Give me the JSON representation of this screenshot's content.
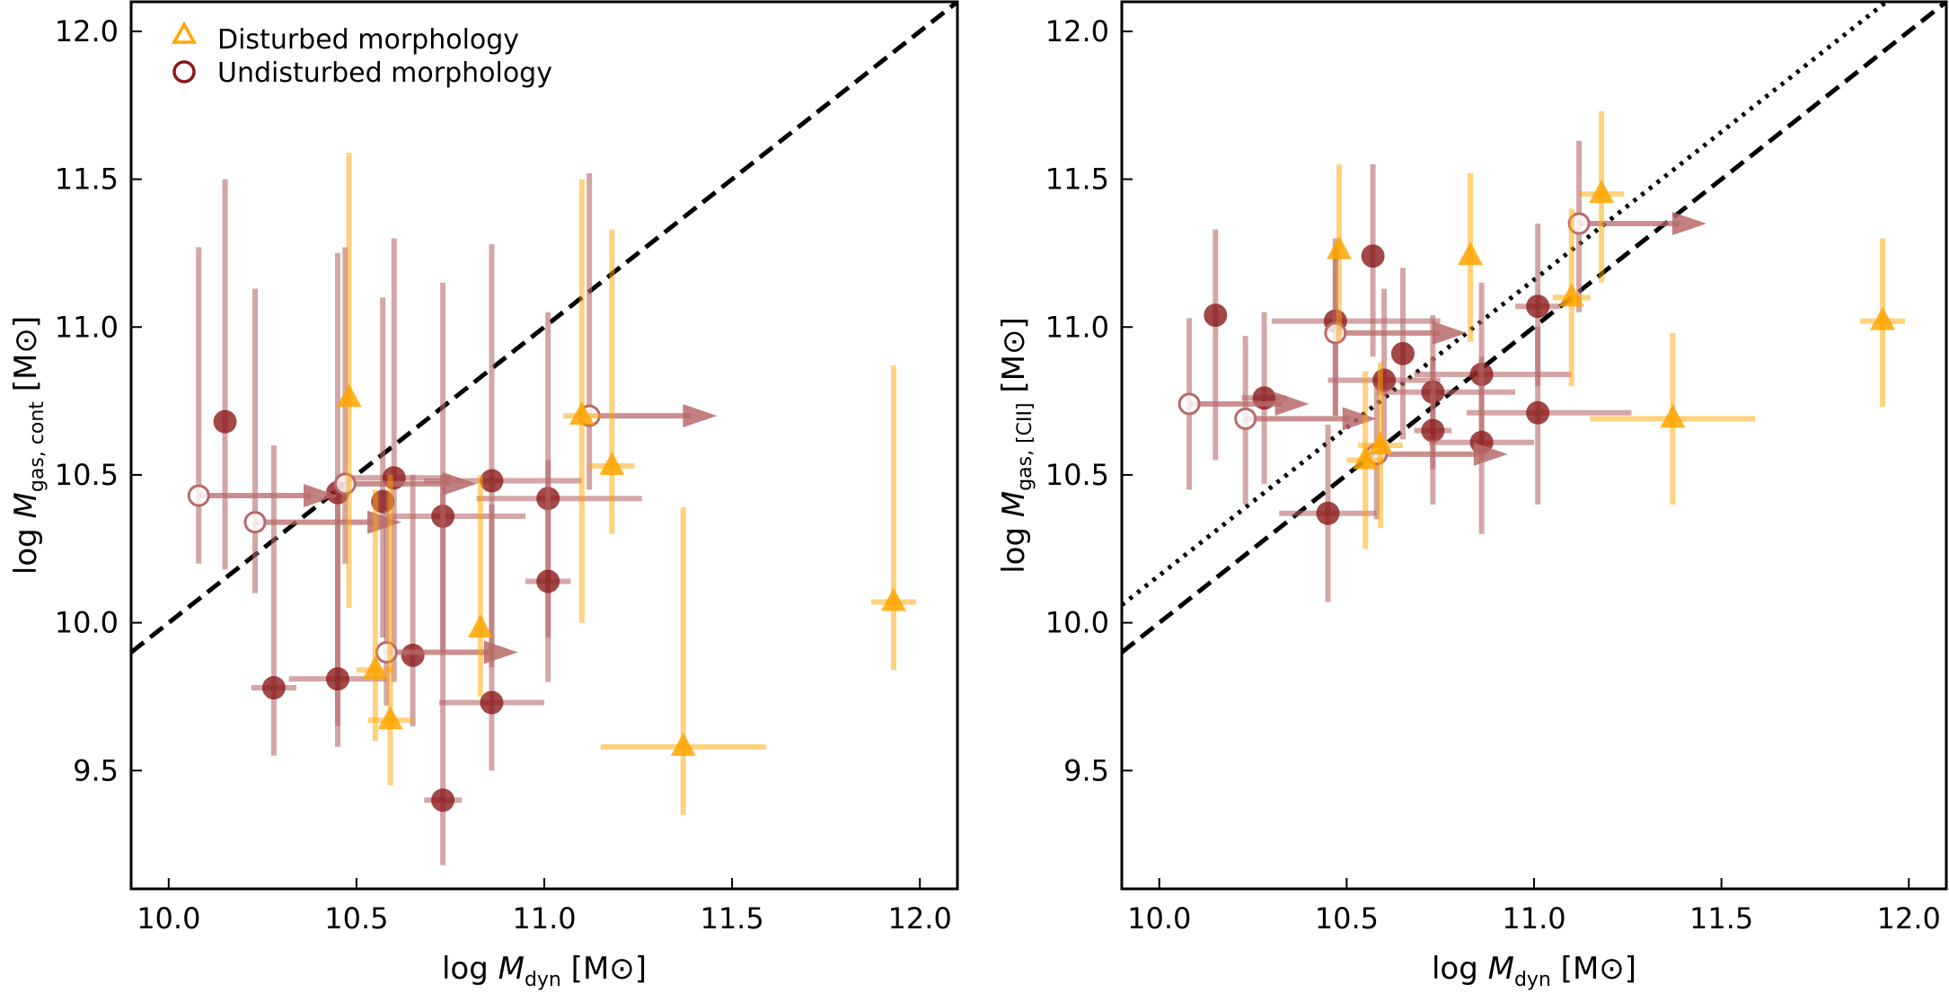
{
  "colors": {
    "disturbed": "#FFA500",
    "undisturbed": "#8B1A1A",
    "undisturbed_faded": "#B86A6A",
    "frame": "#000000"
  },
  "legend": {
    "placement": "top-left",
    "items": [
      {
        "label": "Disturbed morphology",
        "marker": "triangle-open",
        "color_key": "disturbed"
      },
      {
        "label": "Undisturbed morphology",
        "marker": "circle-open",
        "color_key": "undisturbed"
      }
    ]
  },
  "chart_data": [
    {
      "type": "scatter",
      "panel": "left",
      "xlabel_pre": "log ",
      "xlabel_var": "M",
      "xlabel_sub": "dyn",
      "xlabel_post": " [M⊙]",
      "ylabel_pre": "log ",
      "ylabel_var": "M",
      "ylabel_sub": "gas, cont",
      "ylabel_post": " [M⊙]",
      "xlim": [
        9.9,
        12.1
      ],
      "ylim": [
        9.1,
        12.1
      ],
      "xticks": [
        "10.0",
        "10.5",
        "11.0",
        "11.5",
        "12.0"
      ],
      "yticks": [
        "9.5",
        "10.0",
        "10.5",
        "11.0",
        "11.5",
        "12.0"
      ],
      "lines": [
        {
          "style": "dashed",
          "slope": 1,
          "intercept": 0
        }
      ],
      "series": [
        {
          "name": "Undisturbed morphology",
          "points": [
            {
              "x": 10.15,
              "y": 10.68,
              "ylo": 10.18,
              "yhi": 11.5
            },
            {
              "x": 10.45,
              "y": 10.44,
              "ylo": 9.65,
              "yhi": 11.25
            },
            {
              "x": 10.57,
              "y": 10.41,
              "ylo": 9.95,
              "yhi": 11.1
            },
            {
              "x": 10.6,
              "y": 10.49,
              "ylo": 9.8,
              "yhi": 11.3,
              "xlo": 10.45,
              "xhi": 10.75
            },
            {
              "x": 10.73,
              "y": 10.36,
              "ylo": 9.9,
              "yhi": 11.15,
              "xlo": 10.58,
              "xhi": 10.95
            },
            {
              "x": 10.86,
              "y": 10.48,
              "ylo": 9.85,
              "yhi": 11.28,
              "xlo": 10.68,
              "xhi": 11.1
            },
            {
              "x": 11.01,
              "y": 10.42,
              "ylo": 9.95,
              "yhi": 11.05,
              "xlo": 10.82,
              "xhi": 11.26
            },
            {
              "x": 11.01,
              "y": 10.14,
              "ylo": 9.8,
              "yhi": 10.55,
              "xlo": 10.95,
              "xhi": 11.07
            },
            {
              "x": 10.28,
              "y": 9.78,
              "ylo": 9.55,
              "yhi": 10.6,
              "xlo": 10.22,
              "xhi": 10.34
            },
            {
              "x": 10.45,
              "y": 9.81,
              "ylo": 9.58,
              "yhi": 10.4,
              "xlo": 10.32,
              "xhi": 10.58
            },
            {
              "x": 10.65,
              "y": 9.89,
              "ylo": 9.65,
              "yhi": 10.5
            },
            {
              "x": 10.86,
              "y": 9.73,
              "ylo": 9.5,
              "yhi": 10.4,
              "xlo": 10.72,
              "xhi": 11.0
            },
            {
              "x": 10.73,
              "y": 9.4,
              "ylo": 9.18,
              "yhi": 10.5,
              "xlo": 10.68,
              "xhi": 10.78
            },
            {
              "x": 10.08,
              "y": 10.43,
              "ylo": 10.2,
              "yhi": 11.27,
              "open": true,
              "xlimit_to": 10.45
            },
            {
              "x": 10.23,
              "y": 10.34,
              "ylo": 10.1,
              "yhi": 11.13,
              "open": true,
              "xlimit_to": 10.62
            },
            {
              "x": 10.47,
              "y": 10.47,
              "ylo": 10.2,
              "yhi": 11.27,
              "open": true,
              "xlimit_to": 10.82
            },
            {
              "x": 10.58,
              "y": 9.9,
              "ylo": 9.72,
              "yhi": 10.38,
              "open": true,
              "xlimit_to": 10.93
            },
            {
              "x": 11.12,
              "y": 10.7,
              "ylo": 10.45,
              "yhi": 11.52,
              "open": true,
              "xlimit_to": 11.46
            }
          ]
        },
        {
          "name": "Disturbed morphology",
          "points": [
            {
              "x": 10.48,
              "y": 10.76,
              "ylo": 10.05,
              "yhi": 11.59
            },
            {
              "x": 11.1,
              "y": 10.7,
              "ylo": 10.0,
              "yhi": 11.5,
              "xlo": 11.05,
              "xhi": 11.15
            },
            {
              "x": 11.18,
              "y": 10.53,
              "ylo": 10.3,
              "yhi": 11.33,
              "xlo": 11.12,
              "xhi": 11.24
            },
            {
              "x": 10.83,
              "y": 9.98,
              "ylo": 9.75,
              "yhi": 10.5
            },
            {
              "x": 10.55,
              "y": 9.84,
              "ylo": 9.6,
              "yhi": 10.45,
              "xlo": 10.5,
              "xhi": 10.6
            },
            {
              "x": 10.59,
              "y": 9.67,
              "ylo": 9.45,
              "yhi": 10.5,
              "xlo": 10.53,
              "xhi": 10.65
            },
            {
              "x": 11.37,
              "y": 9.58,
              "ylo": 9.35,
              "yhi": 10.39,
              "xlo": 11.15,
              "xhi": 11.59
            },
            {
              "x": 11.93,
              "y": 10.07,
              "ylo": 9.84,
              "yhi": 10.87,
              "xlo": 11.87,
              "xhi": 11.99
            }
          ]
        }
      ]
    },
    {
      "type": "scatter",
      "panel": "right",
      "xlabel_pre": "log ",
      "xlabel_var": "M",
      "xlabel_sub": "dyn",
      "xlabel_post": " [M⊙]",
      "ylabel_pre": "log ",
      "ylabel_var": "M",
      "ylabel_sub": "gas, [CII]",
      "ylabel_post": " [M⊙]",
      "xlim": [
        9.9,
        12.1
      ],
      "ylim": [
        9.1,
        12.1
      ],
      "xticks": [
        "10.0",
        "10.5",
        "11.0",
        "11.5",
        "12.0"
      ],
      "yticks": [
        "9.5",
        "10.0",
        "10.5",
        "11.0",
        "11.5",
        "12.0"
      ],
      "lines": [
        {
          "style": "dashed",
          "slope": 1,
          "intercept": 0
        },
        {
          "style": "dotted",
          "slope": 1,
          "intercept": 0.16
        }
      ],
      "series": [
        {
          "name": "Undisturbed morphology",
          "points": [
            {
              "x": 10.15,
              "y": 11.04,
              "ylo": 10.55,
              "yhi": 11.33
            },
            {
              "x": 10.28,
              "y": 10.76,
              "ylo": 10.47,
              "yhi": 11.05,
              "xlo": 10.22,
              "xhi": 10.34
            },
            {
              "x": 10.47,
              "y": 11.02,
              "ylo": 10.7,
              "yhi": 11.27,
              "xlo": 10.3,
              "xhi": 10.75
            },
            {
              "x": 10.57,
              "y": 11.24,
              "ylo": 10.9,
              "yhi": 11.55
            },
            {
              "x": 10.6,
              "y": 10.82,
              "ylo": 10.55,
              "yhi": 11.13,
              "xlo": 10.45,
              "xhi": 10.75
            },
            {
              "x": 10.65,
              "y": 10.91,
              "ylo": 10.62,
              "yhi": 11.2
            },
            {
              "x": 10.73,
              "y": 10.78,
              "ylo": 10.52,
              "yhi": 11.04,
              "xlo": 10.58,
              "xhi": 10.95
            },
            {
              "x": 10.73,
              "y": 10.65,
              "ylo": 10.4,
              "yhi": 10.9,
              "xlo": 10.68,
              "xhi": 10.78
            },
            {
              "x": 10.86,
              "y": 10.84,
              "ylo": 10.55,
              "yhi": 11.15,
              "xlo": 10.68,
              "xhi": 11.1
            },
            {
              "x": 10.86,
              "y": 10.61,
              "ylo": 10.3,
              "yhi": 10.9,
              "xlo": 10.72,
              "xhi": 11.0
            },
            {
              "x": 11.01,
              "y": 11.07,
              "ylo": 10.8,
              "yhi": 11.35,
              "xlo": 10.95,
              "xhi": 11.07
            },
            {
              "x": 11.01,
              "y": 10.71,
              "ylo": 10.4,
              "yhi": 11.0,
              "xlo": 10.82,
              "xhi": 11.26
            },
            {
              "x": 10.45,
              "y": 10.37,
              "ylo": 10.07,
              "yhi": 10.67,
              "xlo": 10.32,
              "xhi": 10.58
            },
            {
              "x": 10.08,
              "y": 10.74,
              "ylo": 10.45,
              "yhi": 11.03,
              "open": true,
              "xlimit_to": 10.4
            },
            {
              "x": 10.23,
              "y": 10.69,
              "ylo": 10.4,
              "yhi": 10.97,
              "open": true,
              "xlimit_to": 10.58
            },
            {
              "x": 10.47,
              "y": 10.98,
              "ylo": 10.7,
              "yhi": 11.3,
              "open": true,
              "xlimit_to": 10.82
            },
            {
              "x": 10.58,
              "y": 10.57,
              "ylo": 10.35,
              "yhi": 10.8,
              "open": true,
              "xlimit_to": 10.93
            },
            {
              "x": 11.12,
              "y": 11.35,
              "ylo": 11.05,
              "yhi": 11.63,
              "open": true,
              "xlimit_to": 11.46
            }
          ]
        },
        {
          "name": "Disturbed morphology",
          "points": [
            {
              "x": 10.48,
              "y": 11.26,
              "ylo": 10.95,
              "yhi": 11.55
            },
            {
              "x": 10.83,
              "y": 11.24,
              "ylo": 10.95,
              "yhi": 11.52
            },
            {
              "x": 11.1,
              "y": 11.1,
              "ylo": 10.8,
              "yhi": 11.4,
              "xlo": 11.05,
              "xhi": 11.15
            },
            {
              "x": 11.18,
              "y": 11.45,
              "ylo": 11.15,
              "yhi": 11.73,
              "xlo": 11.12,
              "xhi": 11.24
            },
            {
              "x": 10.55,
              "y": 10.55,
              "ylo": 10.25,
              "yhi": 10.85,
              "xlo": 10.5,
              "xhi": 10.6
            },
            {
              "x": 10.59,
              "y": 10.6,
              "ylo": 10.32,
              "yhi": 10.88,
              "xlo": 10.53,
              "xhi": 10.65
            },
            {
              "x": 11.37,
              "y": 10.69,
              "ylo": 10.4,
              "yhi": 10.98,
              "xlo": 11.15,
              "xhi": 11.59
            },
            {
              "x": 11.93,
              "y": 11.02,
              "ylo": 10.73,
              "yhi": 11.3,
              "xlo": 11.87,
              "xhi": 11.99
            }
          ]
        }
      ]
    }
  ]
}
